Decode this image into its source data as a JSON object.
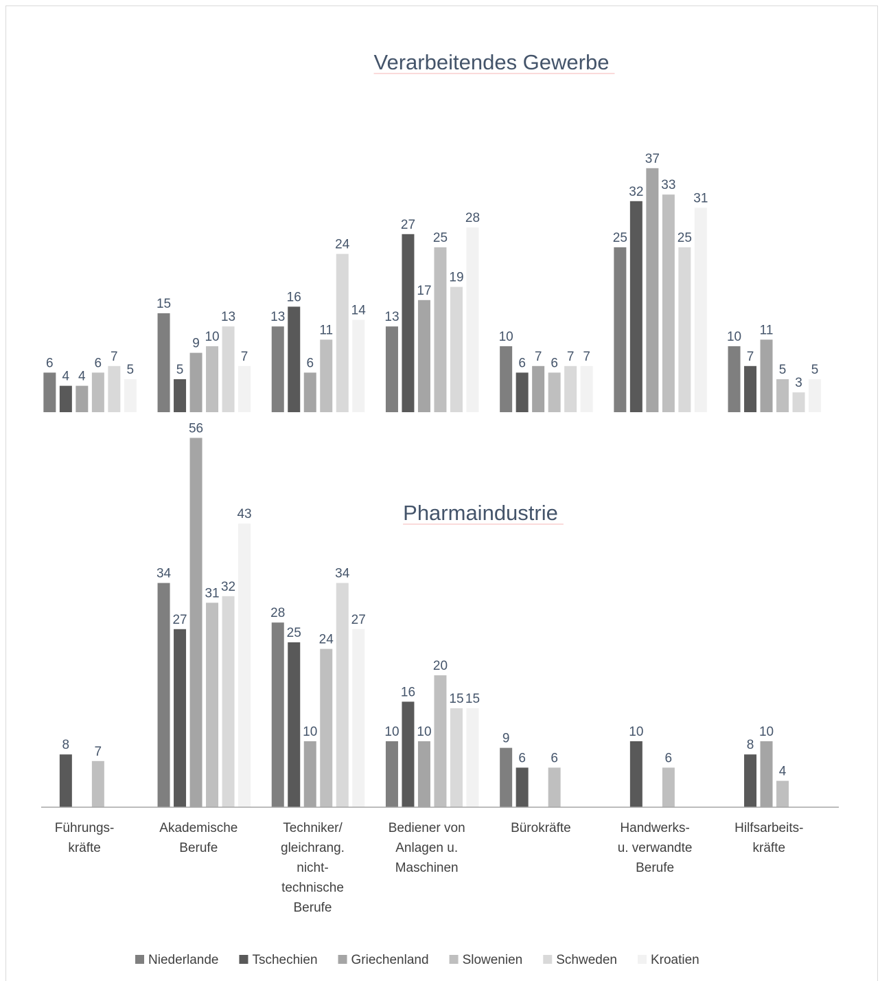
{
  "chart_data": [
    {
      "type": "bar",
      "title": "Verarbeitendes Gewerbe",
      "ylim": [
        0,
        60
      ],
      "series": [
        {
          "name": "Niederlande",
          "color": "#7f7f7f",
          "values": [
            6,
            15,
            13,
            13,
            10,
            25,
            10
          ]
        },
        {
          "name": "Tschechien",
          "color": "#595959",
          "values": [
            4,
            5,
            16,
            27,
            6,
            32,
            7
          ]
        },
        {
          "name": "Griechenland",
          "color": "#a5a5a5",
          "values": [
            4,
            9,
            6,
            17,
            7,
            37,
            11
          ]
        },
        {
          "name": "Slowenien",
          "color": "#bfbfbf",
          "values": [
            6,
            10,
            11,
            25,
            6,
            33,
            5
          ]
        },
        {
          "name": "Schweden",
          "color": "#d9d9d9",
          "values": [
            7,
            13,
            24,
            19,
            7,
            25,
            3
          ]
        },
        {
          "name": "Kroatien",
          "color": "#f2f2f2",
          "values": [
            5,
            7,
            14,
            28,
            7,
            31,
            5
          ]
        }
      ]
    },
    {
      "type": "bar",
      "title": "Pharmaindustrie",
      "ylim": [
        0,
        60
      ],
      "categories": [
        "Führungs-\nkräfte",
        "Akademische\nBerufe",
        "Techniker/\ngleichrang.\nnicht-\ntechnische\nBerufe",
        "Bediener von\nAnlagen u.\nMaschinen",
        "Bürokräfte",
        "Handwerks-\nu. verwandte\nBerufe",
        "Hilfsarbeits-\nkräfte"
      ],
      "series": [
        {
          "values": [
            null,
            34,
            28,
            10,
            9,
            null,
            null
          ]
        },
        {
          "values": [
            8,
            27,
            25,
            16,
            6,
            10,
            8
          ]
        },
        {
          "values": [
            null,
            56,
            10,
            10,
            null,
            null,
            10
          ]
        },
        {
          "values": [
            7,
            31,
            24,
            20,
            6,
            6,
            4
          ]
        },
        {
          "values": [
            null,
            32,
            34,
            15,
            null,
            null,
            null
          ]
        },
        {
          "values": [
            null,
            43,
            27,
            15,
            null,
            null,
            null
          ]
        }
      ]
    }
  ]
}
